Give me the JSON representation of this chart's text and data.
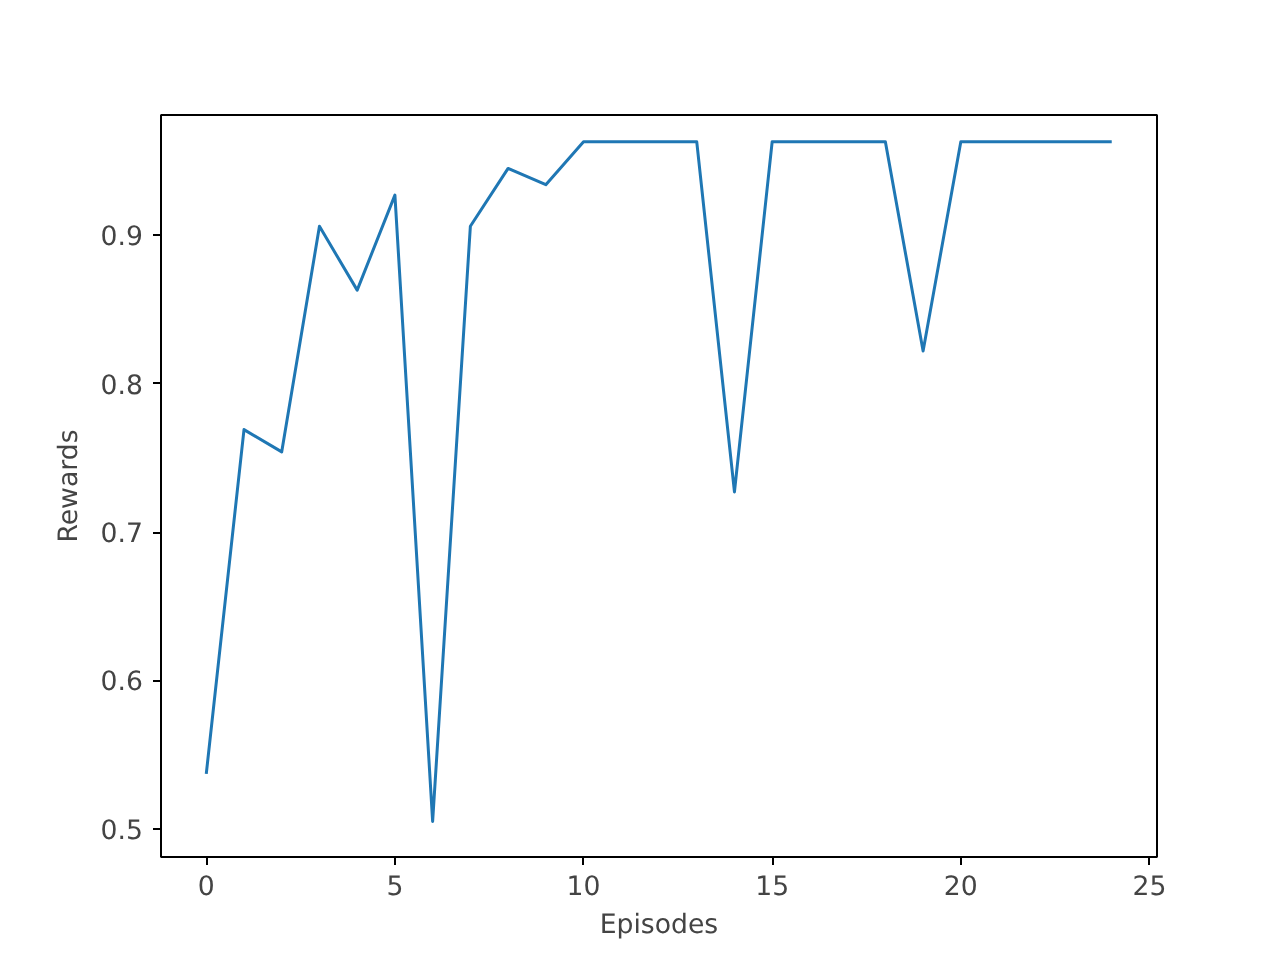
{
  "chart_data": {
    "type": "line",
    "xlabel": "Episodes",
    "ylabel": "Rewards",
    "x": [
      0,
      1,
      2,
      3,
      4,
      5,
      6,
      7,
      8,
      9,
      10,
      11,
      12,
      13,
      14,
      15,
      16,
      17,
      18,
      19,
      20,
      21,
      22,
      23,
      24
    ],
    "series": [
      {
        "color": "#1f77b4",
        "values": [
          0.537,
          0.769,
          0.754,
          0.906,
          0.863,
          0.927,
          0.505,
          0.906,
          0.945,
          0.934,
          0.963,
          0.963,
          0.963,
          0.963,
          0.727,
          0.963,
          0.963,
          0.963,
          0.963,
          0.822,
          0.963,
          0.963,
          0.963,
          0.963,
          0.963
        ]
      }
    ],
    "xlim": [
      -1.2,
      25.2
    ],
    "ylim": [
      0.481,
      0.981
    ],
    "xticks": [
      0,
      5,
      10,
      15,
      20,
      25
    ],
    "yticks": [
      0.5,
      0.6,
      0.7,
      0.8,
      0.9
    ],
    "grid": false
  }
}
